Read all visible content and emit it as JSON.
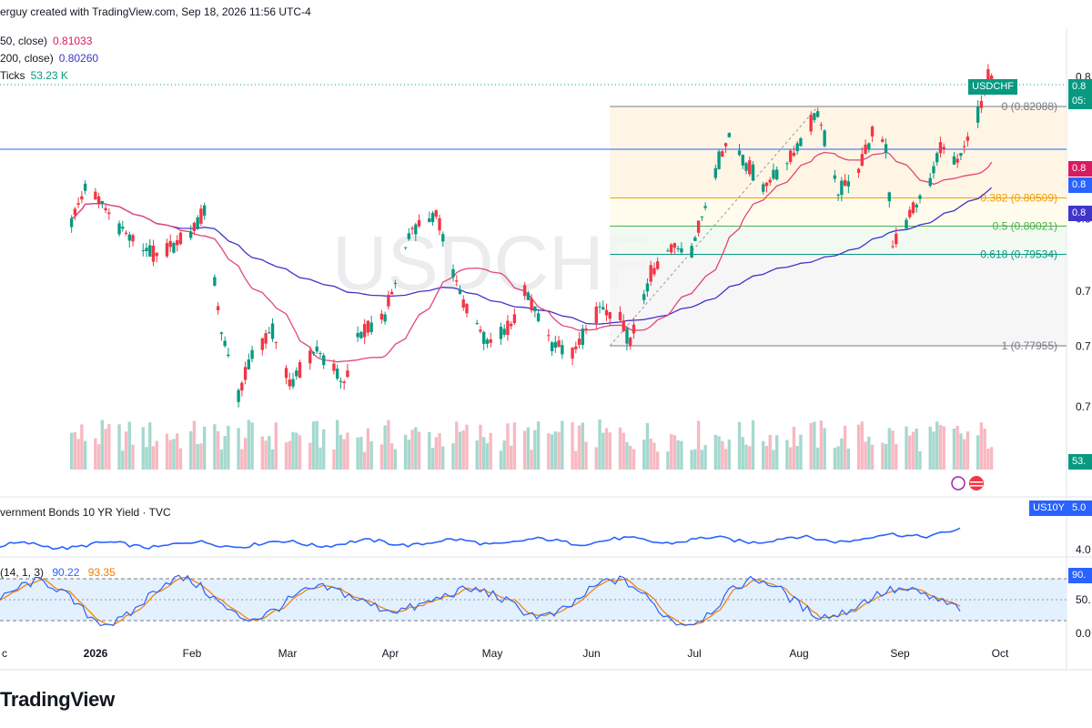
{
  "header": {
    "text": "erguy created with TradingView.com, Sep 18, 2026 11:56 UTC-4"
  },
  "legend": [
    {
      "label": "50, close)",
      "value": "0.81033",
      "color": "#d81b60"
    },
    {
      "label": "200, close)",
      "value": "0.80260",
      "color": "#3f35c9"
    },
    {
      "label": "Ticks",
      "value": "53.23 K",
      "color": "#089981"
    }
  ],
  "watermark": "USDCHF",
  "bonds_title": "vernment Bonds 10 YR Yield · TVC",
  "stoch_title": "(14, 1, 3)",
  "stoch_values": [
    "90.22",
    "93.35"
  ],
  "brand": "TradingView",
  "price_tags": [
    {
      "text": "USDCHF",
      "color": "#089981"
    },
    {
      "text": "0.8",
      "color": "#089981"
    },
    {
      "text": "05:",
      "color": "#089981"
    },
    {
      "text": "0.8",
      "color": "#d81b60"
    },
    {
      "text": "0.8",
      "color": "#2962ff"
    },
    {
      "text": "0.8",
      "color": "#3f35c9"
    },
    {
      "text": "53.",
      "color": "#089981"
    },
    {
      "text": "US10Y",
      "color": "#2962ff"
    },
    {
      "text": "5.0",
      "color": "#2962ff"
    },
    {
      "text": "90.",
      "color": "#2962ff"
    }
  ],
  "chart_data": {
    "type": "candlestick",
    "symbol": "USDCHF",
    "x_labels": [
      "c",
      "2026",
      "Feb",
      "Mar",
      "Apr",
      "May",
      "Jun",
      "Jul",
      "Aug",
      "Sep",
      "Oct"
    ],
    "y_tick_labels": [
      "0.8",
      "0.8",
      "0.8",
      "0.7",
      "0.7",
      "0.7"
    ],
    "fibonacci": [
      {
        "level": "0",
        "label": "0 (0.82088)",
        "price": 0.82088,
        "color": "#787b86"
      },
      {
        "level": "0.382",
        "label": "0.382 (0.80509)",
        "price": 0.80509,
        "color": "#f59f00"
      },
      {
        "level": "0.5",
        "label": "0.5 (0.80021)",
        "price": 0.80021,
        "color": "#4caf50"
      },
      {
        "level": "0.618",
        "label": "0.618 (0.79534)",
        "price": 0.79534,
        "color": "#089981"
      },
      {
        "level": "1",
        "label": "1 (0.77955)",
        "price": 0.77955,
        "color": "#787b86"
      }
    ],
    "horizontal_line": 0.8135,
    "ma50_last": 0.81033,
    "ma200_last": 0.8026,
    "volume_last": "53.23 K",
    "bonds_axis_labels": [
      "4.0"
    ],
    "stoch_axis_labels": [
      "50.",
      "0.0"
    ],
    "stoch_k_last": 90.22,
    "stoch_d_last": 93.35,
    "anchors": [
      {
        "date": "2025-12-22",
        "price": 0.801
      },
      {
        "date": "2025-12-26",
        "price": 0.807
      },
      {
        "date": "2025-12-31",
        "price": 0.804
      },
      {
        "date": "2026-01-08",
        "price": 0.798
      },
      {
        "date": "2026-01-16",
        "price": 0.795
      },
      {
        "date": "2026-01-26",
        "price": 0.799
      },
      {
        "date": "2026-01-30",
        "price": 0.803
      },
      {
        "date": "2026-02-04",
        "price": 0.782
      },
      {
        "date": "2026-02-09",
        "price": 0.771
      },
      {
        "date": "2026-02-13",
        "price": 0.778
      },
      {
        "date": "2026-02-19",
        "price": 0.782
      },
      {
        "date": "2026-02-24",
        "price": 0.773
      },
      {
        "date": "2026-03-04",
        "price": 0.779
      },
      {
        "date": "2026-03-12",
        "price": 0.773
      },
      {
        "date": "2026-03-16",
        "price": 0.781
      },
      {
        "date": "2026-03-24",
        "price": 0.785
      },
      {
        "date": "2026-04-01",
        "price": 0.8
      },
      {
        "date": "2026-04-08",
        "price": 0.802
      },
      {
        "date": "2026-04-16",
        "price": 0.787
      },
      {
        "date": "2026-04-23",
        "price": 0.78
      },
      {
        "date": "2026-04-30",
        "price": 0.783
      },
      {
        "date": "2026-05-04",
        "price": 0.789
      },
      {
        "date": "2026-05-12",
        "price": 0.78
      },
      {
        "date": "2026-05-18",
        "price": 0.778
      },
      {
        "date": "2026-05-26",
        "price": 0.786
      },
      {
        "date": "2026-06-01",
        "price": 0.784
      },
      {
        "date": "2026-06-04",
        "price": 0.78
      },
      {
        "date": "2026-06-10",
        "price": 0.792
      },
      {
        "date": "2026-06-17",
        "price": 0.797
      },
      {
        "date": "2026-06-22",
        "price": 0.796
      },
      {
        "date": "2026-06-29",
        "price": 0.81
      },
      {
        "date": "2026-07-03",
        "price": 0.816
      },
      {
        "date": "2026-07-08",
        "price": 0.811
      },
      {
        "date": "2026-07-13",
        "price": 0.807
      },
      {
        "date": "2026-07-21",
        "price": 0.812
      },
      {
        "date": "2026-07-29",
        "price": 0.82
      },
      {
        "date": "2026-08-04",
        "price": 0.806
      },
      {
        "date": "2026-08-10",
        "price": 0.81
      },
      {
        "date": "2026-08-14",
        "price": 0.816
      },
      {
        "date": "2026-08-18",
        "price": 0.814
      },
      {
        "date": "2026-08-20",
        "price": 0.797
      },
      {
        "date": "2026-08-24",
        "price": 0.801
      },
      {
        "date": "2026-08-31",
        "price": 0.808
      },
      {
        "date": "2026-09-03",
        "price": 0.814
      },
      {
        "date": "2026-09-08",
        "price": 0.811
      },
      {
        "date": "2026-09-11",
        "price": 0.815
      },
      {
        "date": "2026-09-15",
        "price": 0.821
      },
      {
        "date": "2026-09-16",
        "price": 0.824
      },
      {
        "date": "2026-09-17",
        "price": 0.826
      },
      {
        "date": "2026-09-18",
        "price": 0.825
      }
    ]
  }
}
